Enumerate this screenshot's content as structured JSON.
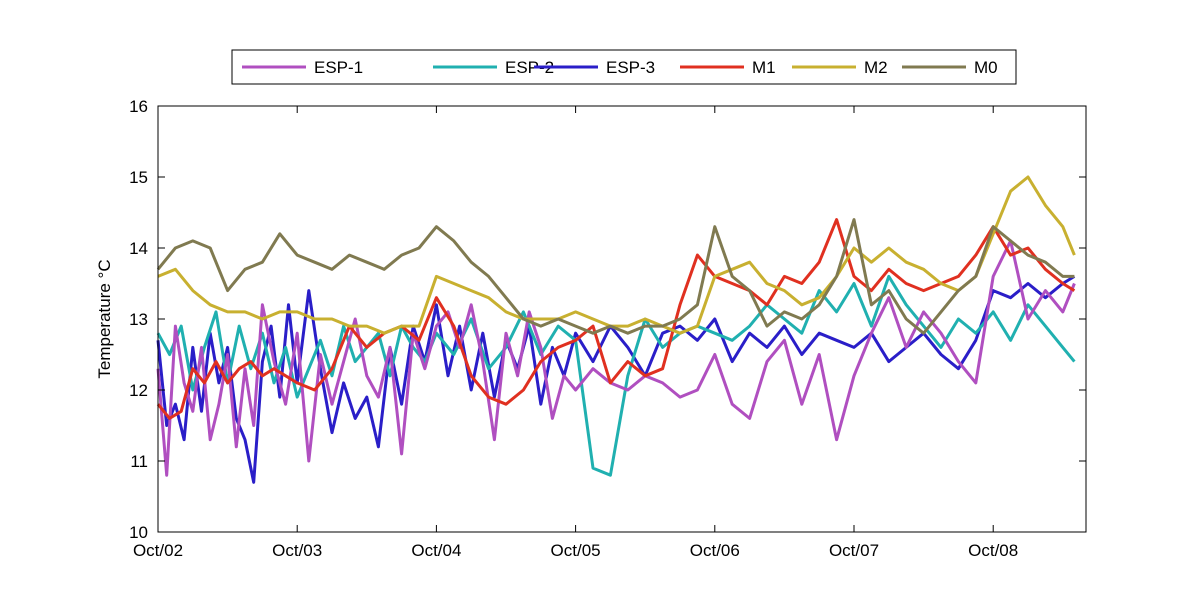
{
  "chart_data": {
    "type": "line",
    "title": "",
    "xlabel": "",
    "ylabel": "Temperature °C",
    "xlim": [
      "2012-10-02",
      "2012-10-08T16:00"
    ],
    "ylim": [
      10,
      16
    ],
    "x_ticks": [
      {
        "value": "2012-10-02",
        "label": "Oct/02"
      },
      {
        "value": "2012-10-03",
        "label": "Oct/03"
      },
      {
        "value": "2012-10-04",
        "label": "Oct/04"
      },
      {
        "value": "2012-10-05",
        "label": "Oct/05"
      },
      {
        "value": "2012-10-06",
        "label": "Oct/06"
      },
      {
        "value": "2012-10-07",
        "label": "Oct/07"
      },
      {
        "value": "2012-10-08",
        "label": "Oct/08"
      }
    ],
    "y_ticks": [
      10,
      11,
      12,
      13,
      14,
      15,
      16
    ],
    "grid": false,
    "legend_position": "top-center",
    "series": [
      {
        "name": "ESP-1",
        "color": "#b04fc0",
        "x": [
          "2012-10-02T00:00",
          "2012-10-02T01:30",
          "2012-10-02T03:00",
          "2012-10-02T04:30",
          "2012-10-02T06:00",
          "2012-10-02T07:30",
          "2012-10-02T09:00",
          "2012-10-02T10:30",
          "2012-10-02T12:00",
          "2012-10-02T13:30",
          "2012-10-02T15:00",
          "2012-10-02T16:30",
          "2012-10-02T18:00",
          "2012-10-02T20:00",
          "2012-10-02T22:00",
          "2012-10-03T00:00",
          "2012-10-03T02:00",
          "2012-10-03T04:00",
          "2012-10-03T06:00",
          "2012-10-03T08:00",
          "2012-10-03T10:00",
          "2012-10-03T12:00",
          "2012-10-03T14:00",
          "2012-10-03T16:00",
          "2012-10-03T18:00",
          "2012-10-03T20:00",
          "2012-10-03T22:00",
          "2012-10-04T00:00",
          "2012-10-04T02:00",
          "2012-10-04T04:00",
          "2012-10-04T06:00",
          "2012-10-04T08:00",
          "2012-10-04T10:00",
          "2012-10-04T12:00",
          "2012-10-04T14:00",
          "2012-10-04T16:00",
          "2012-10-04T18:00",
          "2012-10-04T20:00",
          "2012-10-04T22:00",
          "2012-10-05T00:00",
          "2012-10-05T03:00",
          "2012-10-05T06:00",
          "2012-10-05T09:00",
          "2012-10-05T12:00",
          "2012-10-05T15:00",
          "2012-10-05T18:00",
          "2012-10-05T21:00",
          "2012-10-06T00:00",
          "2012-10-06T03:00",
          "2012-10-06T06:00",
          "2012-10-06T09:00",
          "2012-10-06T12:00",
          "2012-10-06T15:00",
          "2012-10-06T18:00",
          "2012-10-06T21:00",
          "2012-10-07T00:00",
          "2012-10-07T03:00",
          "2012-10-07T06:00",
          "2012-10-07T09:00",
          "2012-10-07T12:00",
          "2012-10-07T15:00",
          "2012-10-07T18:00",
          "2012-10-07T21:00",
          "2012-10-08T00:00",
          "2012-10-08T03:00",
          "2012-10-08T06:00",
          "2012-10-08T09:00",
          "2012-10-08T12:00",
          "2012-10-08T14:00"
        ],
        "values": [
          12.3,
          10.8,
          12.9,
          12.1,
          11.7,
          12.6,
          11.3,
          11.8,
          12.5,
          11.2,
          12.3,
          11.5,
          13.2,
          12.4,
          11.8,
          12.8,
          11.0,
          12.5,
          11.8,
          12.4,
          13.0,
          12.2,
          11.9,
          12.6,
          11.1,
          12.8,
          12.3,
          12.9,
          13.1,
          12.6,
          13.2,
          12.4,
          11.3,
          12.8,
          12.2,
          13.1,
          12.6,
          11.6,
          12.2,
          12.0,
          12.3,
          12.1,
          12.0,
          12.2,
          12.1,
          11.9,
          12.0,
          12.5,
          11.8,
          11.6,
          12.4,
          12.7,
          11.8,
          12.5,
          11.3,
          12.2,
          12.8,
          13.3,
          12.6,
          13.1,
          12.8,
          12.4,
          12.1,
          13.6,
          14.1,
          13.0,
          13.4,
          13.1,
          13.5
        ]
      },
      {
        "name": "ESP-2",
        "color": "#20b0b0",
        "x": [
          "2012-10-02T00:00",
          "2012-10-02T02:00",
          "2012-10-02T04:00",
          "2012-10-02T06:00",
          "2012-10-02T08:00",
          "2012-10-02T10:00",
          "2012-10-02T12:00",
          "2012-10-02T14:00",
          "2012-10-02T16:00",
          "2012-10-02T18:00",
          "2012-10-02T20:00",
          "2012-10-02T22:00",
          "2012-10-03T00:00",
          "2012-10-03T02:00",
          "2012-10-03T04:00",
          "2012-10-03T06:00",
          "2012-10-03T08:00",
          "2012-10-03T10:00",
          "2012-10-03T12:00",
          "2012-10-03T14:00",
          "2012-10-03T16:00",
          "2012-10-03T18:00",
          "2012-10-03T20:00",
          "2012-10-03T22:00",
          "2012-10-04T00:00",
          "2012-10-04T03:00",
          "2012-10-04T06:00",
          "2012-10-04T09:00",
          "2012-10-04T12:00",
          "2012-10-04T15:00",
          "2012-10-04T18:00",
          "2012-10-04T21:00",
          "2012-10-05T00:00",
          "2012-10-05T03:00",
          "2012-10-05T06:00",
          "2012-10-05T09:00",
          "2012-10-05T12:00",
          "2012-10-05T15:00",
          "2012-10-05T18:00",
          "2012-10-05T21:00",
          "2012-10-06T00:00",
          "2012-10-06T03:00",
          "2012-10-06T06:00",
          "2012-10-06T09:00",
          "2012-10-06T12:00",
          "2012-10-06T15:00",
          "2012-10-06T18:00",
          "2012-10-06T21:00",
          "2012-10-07T00:00",
          "2012-10-07T03:00",
          "2012-10-07T06:00",
          "2012-10-07T09:00",
          "2012-10-07T12:00",
          "2012-10-07T15:00",
          "2012-10-07T18:00",
          "2012-10-07T21:00",
          "2012-10-08T00:00",
          "2012-10-08T03:00",
          "2012-10-08T06:00",
          "2012-10-08T09:00",
          "2012-10-08T12:00",
          "2012-10-08T14:00"
        ],
        "values": [
          12.8,
          12.5,
          12.9,
          12.0,
          12.6,
          13.1,
          12.1,
          12.9,
          12.3,
          12.8,
          12.1,
          12.6,
          11.9,
          12.3,
          12.7,
          12.2,
          12.9,
          12.4,
          12.6,
          12.8,
          12.2,
          12.9,
          12.6,
          12.4,
          12.8,
          12.5,
          13.0,
          12.3,
          12.6,
          13.1,
          12.5,
          12.9,
          12.7,
          10.9,
          10.8,
          12.2,
          13.0,
          12.6,
          12.8,
          12.9,
          12.8,
          12.7,
          12.9,
          13.2,
          13.0,
          12.8,
          13.4,
          13.1,
          13.5,
          12.9,
          13.6,
          13.2,
          12.9,
          12.6,
          13.0,
          12.8,
          13.1,
          12.7,
          13.2,
          12.9,
          12.6,
          12.4
        ]
      },
      {
        "name": "ESP-3",
        "color": "#2a1ec8",
        "x": [
          "2012-10-02T00:00",
          "2012-10-02T01:30",
          "2012-10-02T03:00",
          "2012-10-02T04:30",
          "2012-10-02T06:00",
          "2012-10-02T07:30",
          "2012-10-02T09:00",
          "2012-10-02T10:30",
          "2012-10-02T12:00",
          "2012-10-02T13:30",
          "2012-10-02T15:00",
          "2012-10-02T16:30",
          "2012-10-02T18:00",
          "2012-10-02T19:30",
          "2012-10-02T21:00",
          "2012-10-02T22:30",
          "2012-10-03T00:00",
          "2012-10-03T02:00",
          "2012-10-03T04:00",
          "2012-10-03T06:00",
          "2012-10-03T08:00",
          "2012-10-03T10:00",
          "2012-10-03T12:00",
          "2012-10-03T14:00",
          "2012-10-03T16:00",
          "2012-10-03T18:00",
          "2012-10-03T20:00",
          "2012-10-03T22:00",
          "2012-10-04T00:00",
          "2012-10-04T02:00",
          "2012-10-04T04:00",
          "2012-10-04T06:00",
          "2012-10-04T08:00",
          "2012-10-04T10:00",
          "2012-10-04T12:00",
          "2012-10-04T14:00",
          "2012-10-04T16:00",
          "2012-10-04T18:00",
          "2012-10-04T20:00",
          "2012-10-04T22:00",
          "2012-10-05T00:00",
          "2012-10-05T03:00",
          "2012-10-05T06:00",
          "2012-10-05T09:00",
          "2012-10-05T12:00",
          "2012-10-05T15:00",
          "2012-10-05T18:00",
          "2012-10-05T21:00",
          "2012-10-06T00:00",
          "2012-10-06T03:00",
          "2012-10-06T06:00",
          "2012-10-06T09:00",
          "2012-10-06T12:00",
          "2012-10-06T15:00",
          "2012-10-06T18:00",
          "2012-10-06T21:00",
          "2012-10-07T00:00",
          "2012-10-07T03:00",
          "2012-10-07T06:00",
          "2012-10-07T09:00",
          "2012-10-07T12:00",
          "2012-10-07T15:00",
          "2012-10-07T18:00",
          "2012-10-07T21:00",
          "2012-10-08T00:00",
          "2012-10-08T03:00",
          "2012-10-08T06:00",
          "2012-10-08T09:00",
          "2012-10-08T12:00",
          "2012-10-08T14:00"
        ],
        "values": [
          12.7,
          11.5,
          11.8,
          11.3,
          12.6,
          11.7,
          12.8,
          12.1,
          12.6,
          11.6,
          11.3,
          10.7,
          12.4,
          12.9,
          11.9,
          13.2,
          12.1,
          13.4,
          12.3,
          11.4,
          12.1,
          11.6,
          11.9,
          11.2,
          12.6,
          11.8,
          12.9,
          12.4,
          13.2,
          12.2,
          12.9,
          12.0,
          12.8,
          11.9,
          12.7,
          12.3,
          12.9,
          11.8,
          12.6,
          12.2,
          12.8,
          12.4,
          12.9,
          12.6,
          12.2,
          12.8,
          12.9,
          12.7,
          13.0,
          12.4,
          12.8,
          12.6,
          12.9,
          12.5,
          12.8,
          12.7,
          12.6,
          12.8,
          12.4,
          12.6,
          12.8,
          12.5,
          12.3,
          12.7,
          13.4,
          13.3,
          13.5,
          13.3,
          13.5,
          13.6
        ]
      },
      {
        "name": "M1",
        "color": "#e03020",
        "x": [
          "2012-10-02T00:00",
          "2012-10-02T02:00",
          "2012-10-02T04:00",
          "2012-10-02T06:00",
          "2012-10-02T08:00",
          "2012-10-02T10:00",
          "2012-10-02T12:00",
          "2012-10-02T14:00",
          "2012-10-02T16:00",
          "2012-10-02T18:00",
          "2012-10-02T20:00",
          "2012-10-02T22:00",
          "2012-10-03T00:00",
          "2012-10-03T03:00",
          "2012-10-03T06:00",
          "2012-10-03T09:00",
          "2012-10-03T12:00",
          "2012-10-03T15:00",
          "2012-10-03T18:00",
          "2012-10-03T21:00",
          "2012-10-04T00:00",
          "2012-10-04T03:00",
          "2012-10-04T06:00",
          "2012-10-04T09:00",
          "2012-10-04T12:00",
          "2012-10-04T15:00",
          "2012-10-04T18:00",
          "2012-10-04T21:00",
          "2012-10-05T00:00",
          "2012-10-05T03:00",
          "2012-10-05T06:00",
          "2012-10-05T09:00",
          "2012-10-05T12:00",
          "2012-10-05T15:00",
          "2012-10-05T18:00",
          "2012-10-05T21:00",
          "2012-10-06T00:00",
          "2012-10-06T03:00",
          "2012-10-06T06:00",
          "2012-10-06T09:00",
          "2012-10-06T12:00",
          "2012-10-06T15:00",
          "2012-10-06T18:00",
          "2012-10-06T21:00",
          "2012-10-07T00:00",
          "2012-10-07T03:00",
          "2012-10-07T06:00",
          "2012-10-07T09:00",
          "2012-10-07T12:00",
          "2012-10-07T15:00",
          "2012-10-07T18:00",
          "2012-10-07T21:00",
          "2012-10-08T00:00",
          "2012-10-08T03:00",
          "2012-10-08T06:00",
          "2012-10-08T09:00",
          "2012-10-08T12:00",
          "2012-10-08T14:00"
        ],
        "values": [
          11.8,
          11.6,
          11.7,
          12.3,
          12.1,
          12.4,
          12.1,
          12.3,
          12.4,
          12.2,
          12.3,
          12.2,
          12.1,
          12.0,
          12.3,
          12.9,
          12.6,
          12.8,
          12.9,
          12.7,
          13.3,
          12.9,
          12.2,
          11.9,
          11.8,
          12.0,
          12.4,
          12.6,
          12.7,
          12.9,
          12.1,
          12.4,
          12.2,
          12.3,
          13.2,
          13.9,
          13.6,
          13.5,
          13.4,
          13.2,
          13.6,
          13.5,
          13.8,
          14.4,
          13.6,
          13.4,
          13.7,
          13.5,
          13.4,
          13.5,
          13.6,
          13.9,
          14.3,
          13.9,
          14.0,
          13.7,
          13.5,
          13.4
        ]
      },
      {
        "name": "M2",
        "color": "#c8b030",
        "x": [
          "2012-10-02T00:00",
          "2012-10-02T03:00",
          "2012-10-02T06:00",
          "2012-10-02T09:00",
          "2012-10-02T12:00",
          "2012-10-02T15:00",
          "2012-10-02T18:00",
          "2012-10-02T21:00",
          "2012-10-03T00:00",
          "2012-10-03T03:00",
          "2012-10-03T06:00",
          "2012-10-03T09:00",
          "2012-10-03T12:00",
          "2012-10-03T15:00",
          "2012-10-03T18:00",
          "2012-10-03T21:00",
          "2012-10-04T00:00",
          "2012-10-04T03:00",
          "2012-10-04T06:00",
          "2012-10-04T09:00",
          "2012-10-04T12:00",
          "2012-10-04T15:00",
          "2012-10-04T18:00",
          "2012-10-04T21:00",
          "2012-10-05T00:00",
          "2012-10-05T03:00",
          "2012-10-05T06:00",
          "2012-10-05T09:00",
          "2012-10-05T12:00",
          "2012-10-05T15:00",
          "2012-10-05T18:00",
          "2012-10-05T21:00",
          "2012-10-06T00:00",
          "2012-10-06T03:00",
          "2012-10-06T06:00",
          "2012-10-06T09:00",
          "2012-10-06T12:00",
          "2012-10-06T15:00",
          "2012-10-06T18:00",
          "2012-10-06T21:00",
          "2012-10-07T00:00",
          "2012-10-07T03:00",
          "2012-10-07T06:00",
          "2012-10-07T09:00",
          "2012-10-07T12:00",
          "2012-10-07T15:00",
          "2012-10-07T18:00",
          "2012-10-07T21:00",
          "2012-10-08T00:00",
          "2012-10-08T03:00",
          "2012-10-08T06:00",
          "2012-10-08T09:00",
          "2012-10-08T12:00",
          "2012-10-08T14:00"
        ],
        "values": [
          13.6,
          13.7,
          13.4,
          13.2,
          13.1,
          13.1,
          13.0,
          13.1,
          13.1,
          13.0,
          13.0,
          12.9,
          12.9,
          12.8,
          12.9,
          12.9,
          13.6,
          13.5,
          13.4,
          13.3,
          13.1,
          13.0,
          13.0,
          13.0,
          13.1,
          13.0,
          12.9,
          12.9,
          13.0,
          12.9,
          12.8,
          12.9,
          13.6,
          13.7,
          13.8,
          13.5,
          13.4,
          13.2,
          13.3,
          13.6,
          14.0,
          13.8,
          14.0,
          13.8,
          13.7,
          13.5,
          13.4,
          13.6,
          14.2,
          14.8,
          15.0,
          14.6,
          14.3,
          13.9
        ]
      },
      {
        "name": "M0",
        "color": "#807a50",
        "x": [
          "2012-10-02T00:00",
          "2012-10-02T03:00",
          "2012-10-02T06:00",
          "2012-10-02T09:00",
          "2012-10-02T12:00",
          "2012-10-02T15:00",
          "2012-10-02T18:00",
          "2012-10-02T21:00",
          "2012-10-03T00:00",
          "2012-10-03T03:00",
          "2012-10-03T06:00",
          "2012-10-03T09:00",
          "2012-10-03T12:00",
          "2012-10-03T15:00",
          "2012-10-03T18:00",
          "2012-10-03T21:00",
          "2012-10-04T00:00",
          "2012-10-04T03:00",
          "2012-10-04T06:00",
          "2012-10-04T09:00",
          "2012-10-04T12:00",
          "2012-10-04T15:00",
          "2012-10-04T18:00",
          "2012-10-04T21:00",
          "2012-10-05T00:00",
          "2012-10-05T03:00",
          "2012-10-05T06:00",
          "2012-10-05T09:00",
          "2012-10-05T12:00",
          "2012-10-05T15:00",
          "2012-10-05T18:00",
          "2012-10-05T21:00",
          "2012-10-06T00:00",
          "2012-10-06T03:00",
          "2012-10-06T06:00",
          "2012-10-06T09:00",
          "2012-10-06T12:00",
          "2012-10-06T15:00",
          "2012-10-06T18:00",
          "2012-10-06T21:00",
          "2012-10-07T00:00",
          "2012-10-07T03:00",
          "2012-10-07T06:00",
          "2012-10-07T09:00",
          "2012-10-07T12:00",
          "2012-10-07T15:00",
          "2012-10-07T18:00",
          "2012-10-07T21:00",
          "2012-10-08T00:00",
          "2012-10-08T03:00",
          "2012-10-08T06:00",
          "2012-10-08T09:00",
          "2012-10-08T12:00",
          "2012-10-08T14:00"
        ],
        "values": [
          13.7,
          14.0,
          14.1,
          14.0,
          13.4,
          13.7,
          13.8,
          14.2,
          13.9,
          13.8,
          13.7,
          13.9,
          13.8,
          13.7,
          13.9,
          14.0,
          14.3,
          14.1,
          13.8,
          13.6,
          13.3,
          13.0,
          12.9,
          13.0,
          12.9,
          12.8,
          12.9,
          12.8,
          12.9,
          12.9,
          13.0,
          13.2,
          14.3,
          13.6,
          13.4,
          12.9,
          13.1,
          13.0,
          13.2,
          13.6,
          14.4,
          13.2,
          13.4,
          13.0,
          12.8,
          13.1,
          13.4,
          13.6,
          14.3,
          14.1,
          13.9,
          13.8,
          13.6,
          13.6
        ]
      }
    ]
  }
}
